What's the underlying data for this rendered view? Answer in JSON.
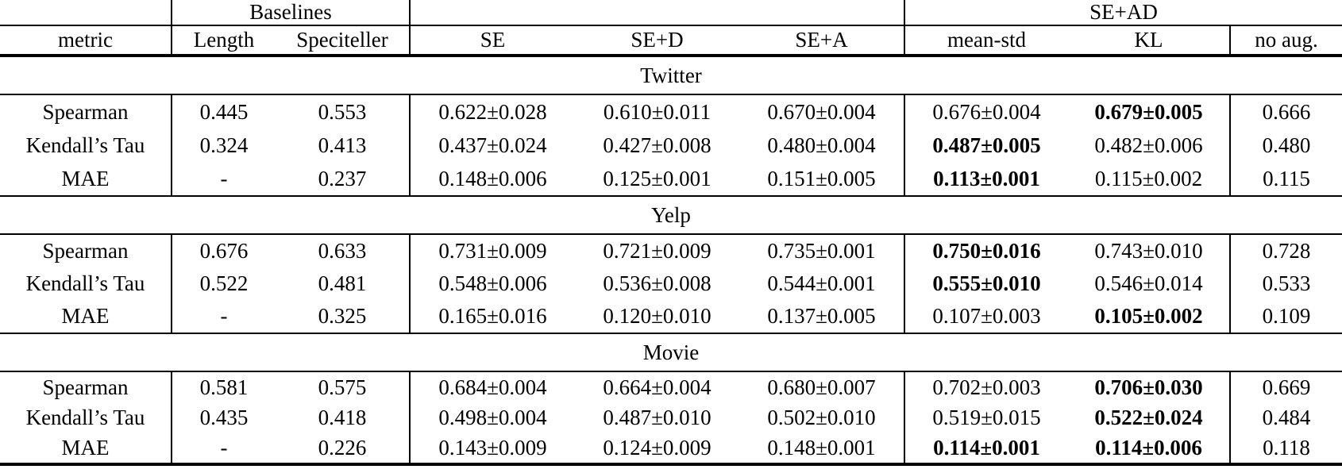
{
  "colors": {
    "text": "#000000",
    "background": "#ffffff",
    "rule": "#000000"
  },
  "table": {
    "group_header": {
      "baselines_label": "Baselines",
      "se_ad_label": "SE+AD"
    },
    "column_header": {
      "metric": "metric",
      "length": "Length",
      "speciteller": "Speciteller",
      "se": "SE",
      "se_d": "SE+D",
      "se_a": "SE+A",
      "mean_std": "mean-std",
      "kl": "KL",
      "no_aug": "no aug."
    },
    "sections": [
      {
        "title": "Twitter",
        "rows": [
          {
            "metric": "Spearman",
            "length": {
              "v": "0.445"
            },
            "speciteller": {
              "v": "0.553"
            },
            "se": {
              "v": "0.622±0.028"
            },
            "se_d": {
              "v": "0.610±0.011"
            },
            "se_a": {
              "v": "0.670±0.004"
            },
            "mean_std": {
              "v": "0.676±0.004"
            },
            "kl": {
              "v": "0.679±0.005",
              "b": true
            },
            "no_aug": {
              "v": "0.666"
            }
          },
          {
            "metric": "Kendall’s Tau",
            "length": {
              "v": "0.324"
            },
            "speciteller": {
              "v": "0.413"
            },
            "se": {
              "v": "0.437±0.024"
            },
            "se_d": {
              "v": "0.427±0.008"
            },
            "se_a": {
              "v": "0.480±0.004"
            },
            "mean_std": {
              "v": "0.487±0.005",
              "b": true
            },
            "kl": {
              "v": "0.482±0.006"
            },
            "no_aug": {
              "v": "0.480"
            }
          },
          {
            "metric": "MAE",
            "length": {
              "v": "-"
            },
            "speciteller": {
              "v": "0.237"
            },
            "se": {
              "v": "0.148±0.006"
            },
            "se_d": {
              "v": "0.125±0.001"
            },
            "se_a": {
              "v": "0.151±0.005"
            },
            "mean_std": {
              "v": "0.113±0.001",
              "b": true
            },
            "kl": {
              "v": "0.115±0.002"
            },
            "no_aug": {
              "v": "0.115"
            }
          }
        ]
      },
      {
        "title": "Yelp",
        "rows": [
          {
            "metric": "Spearman",
            "length": {
              "v": "0.676"
            },
            "speciteller": {
              "v": "0.633"
            },
            "se": {
              "v": "0.731±0.009"
            },
            "se_d": {
              "v": "0.721±0.009"
            },
            "se_a": {
              "v": "0.735±0.001"
            },
            "mean_std": {
              "v": "0.750±0.016",
              "b": true
            },
            "kl": {
              "v": "0.743±0.010"
            },
            "no_aug": {
              "v": "0.728"
            }
          },
          {
            "metric": "Kendall’s Tau",
            "length": {
              "v": "0.522"
            },
            "speciteller": {
              "v": "0.481"
            },
            "se": {
              "v": "0.548±0.006"
            },
            "se_d": {
              "v": "0.536±0.008"
            },
            "se_a": {
              "v": "0.544±0.001"
            },
            "mean_std": {
              "v": "0.555±0.010",
              "b": true
            },
            "kl": {
              "v": "0.546±0.014"
            },
            "no_aug": {
              "v": "0.533"
            }
          },
          {
            "metric": "MAE",
            "length": {
              "v": "-"
            },
            "speciteller": {
              "v": "0.325"
            },
            "se": {
              "v": "0.165±0.016"
            },
            "se_d": {
              "v": "0.120±0.010"
            },
            "se_a": {
              "v": "0.137±0.005"
            },
            "mean_std": {
              "v": "0.107±0.003"
            },
            "kl": {
              "v": "0.105±0.002",
              "b": true
            },
            "no_aug": {
              "v": "0.109"
            }
          }
        ]
      },
      {
        "title": "Movie",
        "rows": [
          {
            "metric": "Spearman",
            "length": {
              "v": "0.581"
            },
            "speciteller": {
              "v": "0.575"
            },
            "se": {
              "v": "0.684±0.004"
            },
            "se_d": {
              "v": "0.664±0.004"
            },
            "se_a": {
              "v": "0.680±0.007"
            },
            "mean_std": {
              "v": "0.702±0.003"
            },
            "kl": {
              "v": "0.706±0.030",
              "b": true
            },
            "no_aug": {
              "v": "0.669"
            }
          },
          {
            "metric": "Kendall’s Tau",
            "length": {
              "v": "0.435"
            },
            "speciteller": {
              "v": "0.418"
            },
            "se": {
              "v": "0.498±0.004"
            },
            "se_d": {
              "v": "0.487±0.010"
            },
            "se_a": {
              "v": "0.502±0.010"
            },
            "mean_std": {
              "v": "0.519±0.015"
            },
            "kl": {
              "v": "0.522±0.024",
              "b": true
            },
            "no_aug": {
              "v": "0.484"
            }
          },
          {
            "metric": "MAE",
            "length": {
              "v": "-"
            },
            "speciteller": {
              "v": "0.226"
            },
            "se": {
              "v": "0.143±0.009"
            },
            "se_d": {
              "v": "0.124±0.009"
            },
            "se_a": {
              "v": "0.148±0.001"
            },
            "mean_std": {
              "v": "0.114±0.001",
              "b": true
            },
            "kl": {
              "v": "0.114±0.006",
              "b": true
            },
            "no_aug": {
              "v": "0.118"
            }
          }
        ]
      }
    ]
  }
}
